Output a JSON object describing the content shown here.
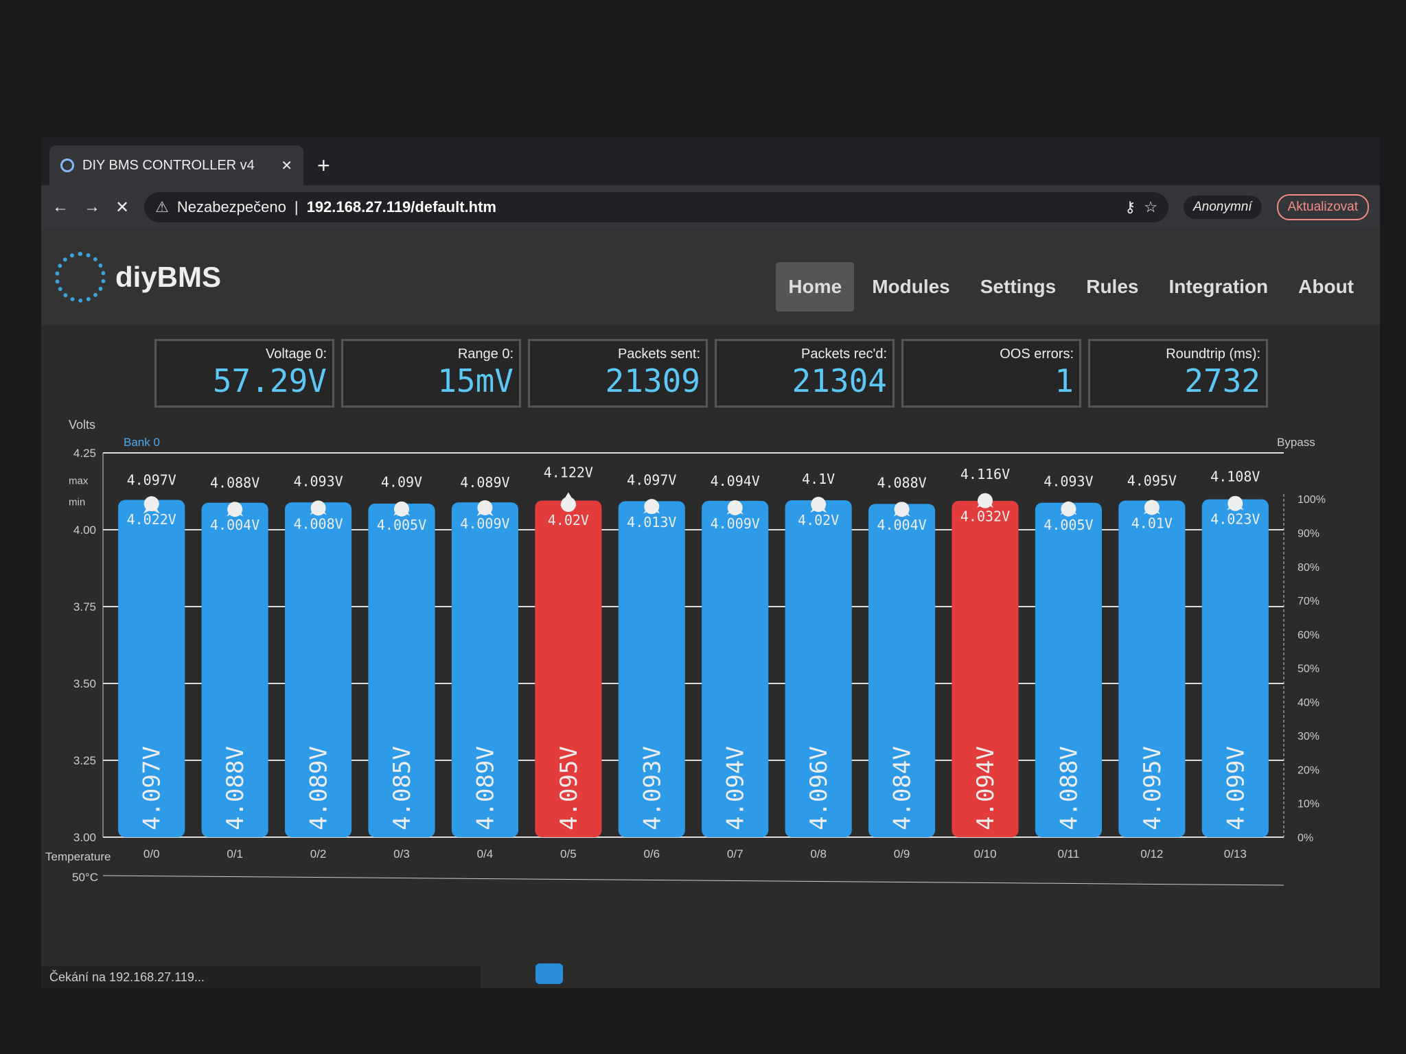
{
  "browser": {
    "tab_title": "DIY BMS CONTROLLER v4",
    "security": "Nezabezpečeno",
    "url": "192.168.27.119/default.htm",
    "profile": "Anonymní",
    "update": "Aktualizovat"
  },
  "app": {
    "brand": "diyBMS",
    "nav": [
      "Home",
      "Modules",
      "Settings",
      "Rules",
      "Integration",
      "About"
    ]
  },
  "stats": [
    {
      "label": "Voltage 0:",
      "value": "57.29V"
    },
    {
      "label": "Range 0:",
      "value": "15mV"
    },
    {
      "label": "Packets sent:",
      "value": "21309"
    },
    {
      "label": "Packets rec'd:",
      "value": "21304"
    },
    {
      "label": "OOS errors:",
      "value": "1"
    },
    {
      "label": "Roundtrip (ms):",
      "value": "2732"
    }
  ],
  "status_text": "Čekání na 192.168.27.119...",
  "chart_data": {
    "type": "bar",
    "ylabel": "Volts",
    "y2label": "Bypass",
    "legend": "Bank 0",
    "xlabel2": "Temperature",
    "temp_tick": "50°C",
    "ylim": [
      3.0,
      4.25
    ],
    "yticks": [
      "3.00",
      "3.25",
      "3.50",
      "3.75",
      "4.00",
      "4.25"
    ],
    "y2ticks": [
      "0%",
      "10%",
      "20%",
      "30%",
      "40%",
      "50%",
      "60%",
      "70%",
      "80%",
      "90%",
      "100%"
    ],
    "markers": [
      "max",
      "min"
    ],
    "categories": [
      "0/0",
      "0/1",
      "0/2",
      "0/3",
      "0/4",
      "0/5",
      "0/6",
      "0/7",
      "0/8",
      "0/9",
      "0/10",
      "0/11",
      "0/12",
      "0/13"
    ],
    "voltage": [
      4.097,
      4.088,
      4.089,
      4.085,
      4.089,
      4.095,
      4.093,
      4.094,
      4.096,
      4.084,
      4.094,
      4.088,
      4.095,
      4.099
    ],
    "max": [
      4.097,
      4.088,
      4.093,
      4.09,
      4.089,
      4.122,
      4.097,
      4.094,
      4.1,
      4.088,
      4.116,
      4.093,
      4.095,
      4.108
    ],
    "min": [
      4.022,
      4.004,
      4.008,
      4.005,
      4.009,
      4.02,
      4.013,
      4.009,
      4.02,
      4.004,
      4.032,
      4.005,
      4.01,
      4.023
    ],
    "bypass": [
      false,
      false,
      false,
      false,
      false,
      true,
      false,
      false,
      false,
      false,
      true,
      false,
      false,
      false
    ],
    "colors": {
      "normal": "#2e9be8",
      "bypass": "#e23c3c"
    }
  }
}
